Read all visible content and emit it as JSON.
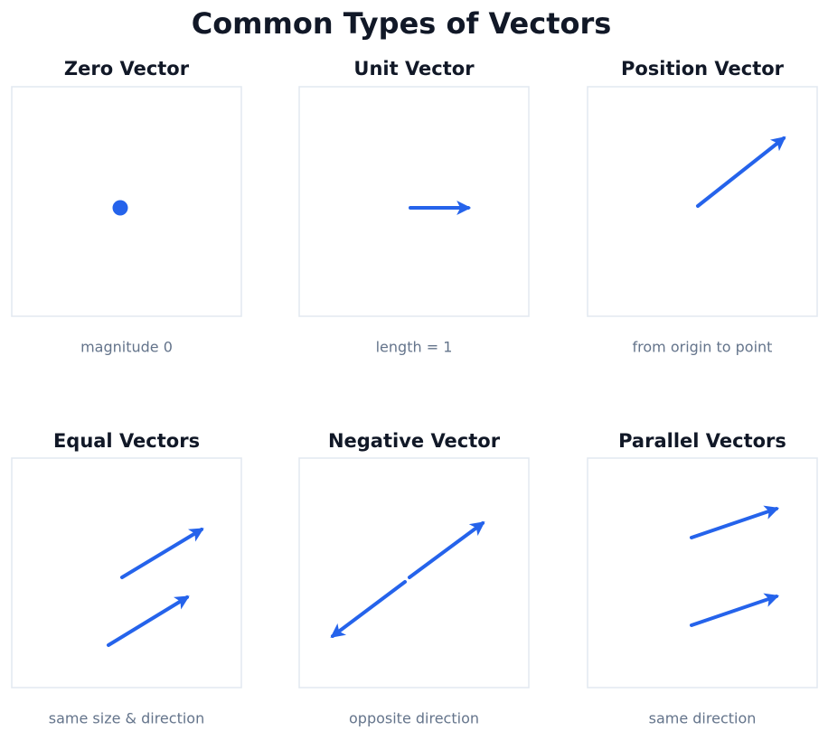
{
  "header": {
    "title": "Common Types of Vectors"
  },
  "panels": [
    {
      "title": "Zero Vector",
      "caption": "magnitude 0"
    },
    {
      "title": "Unit Vector",
      "caption": "length = 1"
    },
    {
      "title": "Position Vector",
      "caption": "from origin to point"
    },
    {
      "title": "Equal Vectors",
      "caption": "same size & direction"
    },
    {
      "title": "Negative Vector",
      "caption": "opposite direction"
    },
    {
      "title": "Parallel Vectors",
      "caption": "same direction"
    }
  ]
}
